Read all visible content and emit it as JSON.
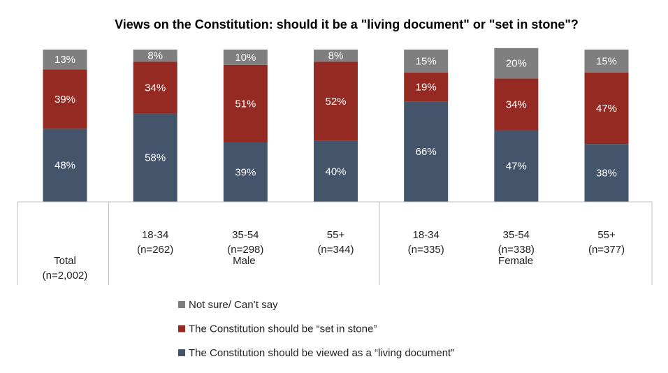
{
  "chart_data": {
    "type": "stacked_bar",
    "title": "Views on the Constitution: should it be a \"living document\" or \"set in stone\"?",
    "categories": [
      [
        "Total",
        "(n=2,002)"
      ],
      [
        "18-34",
        "(n=262)"
      ],
      [
        "35-54",
        "(n=298)"
      ],
      [
        "55+",
        "(n=344)"
      ],
      [
        "18-34",
        "(n=335)"
      ],
      [
        "35-54",
        "(n=338)"
      ],
      [
        "55+",
        "(n=377)"
      ]
    ],
    "groups": [
      {
        "name": null,
        "size": 1
      },
      {
        "name": "Male",
        "size": 3
      },
      {
        "name": "Female",
        "size": 3
      }
    ],
    "ylim": [
      0,
      100
    ],
    "series": [
      {
        "name": "The Constitution should be viewed as a “living document”",
        "color": "#44546a",
        "values": [
          48,
          58,
          39,
          40,
          66,
          47,
          38
        ],
        "value_labels": [
          "48%",
          "58%",
          "39%",
          "40%",
          "66%",
          "47%",
          "38%"
        ]
      },
      {
        "name": "The Constitution should be “set in stone”",
        "color": "#952a22",
        "values": [
          39,
          34,
          51,
          52,
          19,
          34,
          47
        ],
        "value_labels": [
          "39%",
          "34%",
          "51%",
          "52%",
          "19%",
          "34%",
          "47%"
        ]
      },
      {
        "name": "Not sure/ Can’t say",
        "color": "#7f7f7f",
        "values": [
          13,
          8,
          10,
          8,
          15,
          20,
          15
        ],
        "value_labels": [
          "13%",
          "8%",
          "10%",
          "8%",
          "15%",
          "20%",
          "15%"
        ]
      }
    ]
  }
}
